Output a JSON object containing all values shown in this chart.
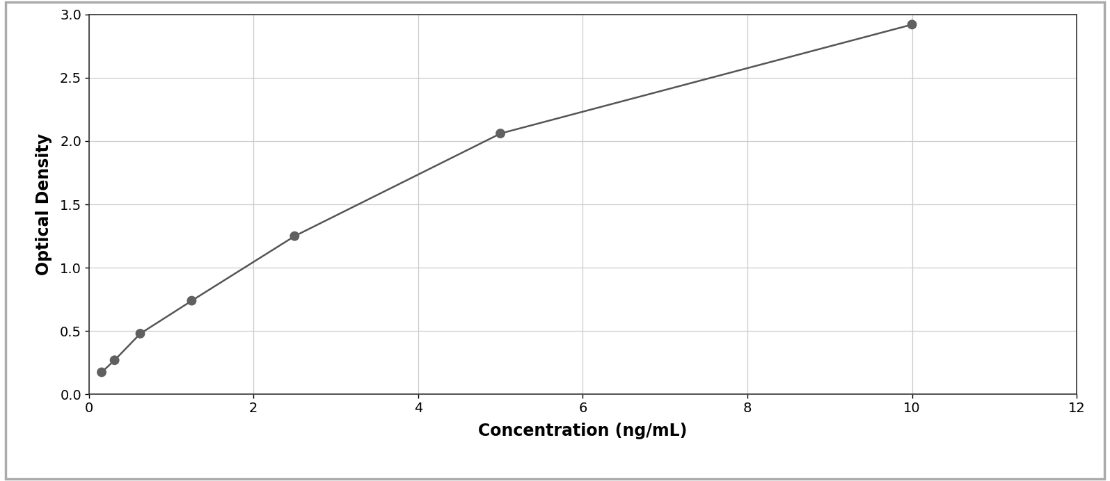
{
  "x_data": [
    0.156,
    0.313,
    0.625,
    1.25,
    2.5,
    5.0,
    10.0
  ],
  "y_data": [
    0.175,
    0.27,
    0.48,
    0.74,
    1.25,
    2.06,
    2.92
  ],
  "xlabel": "Concentration (ng/mL)",
  "ylabel": "Optical Density",
  "xlim": [
    0,
    12
  ],
  "ylim": [
    0,
    3.0
  ],
  "xticks": [
    0,
    2,
    4,
    6,
    8,
    10,
    12
  ],
  "yticks": [
    0,
    0.5,
    1.0,
    1.5,
    2.0,
    2.5,
    3.0
  ],
  "data_color": "#606060",
  "line_color": "#555555",
  "grid_color": "#cccccc",
  "bg_color": "#ffffff",
  "outer_bg": "#ffffff",
  "marker_size": 10,
  "line_width": 1.8,
  "xlabel_fontsize": 17,
  "ylabel_fontsize": 17,
  "tick_fontsize": 14,
  "xlabel_fontweight": "bold",
  "ylabel_fontweight": "bold"
}
